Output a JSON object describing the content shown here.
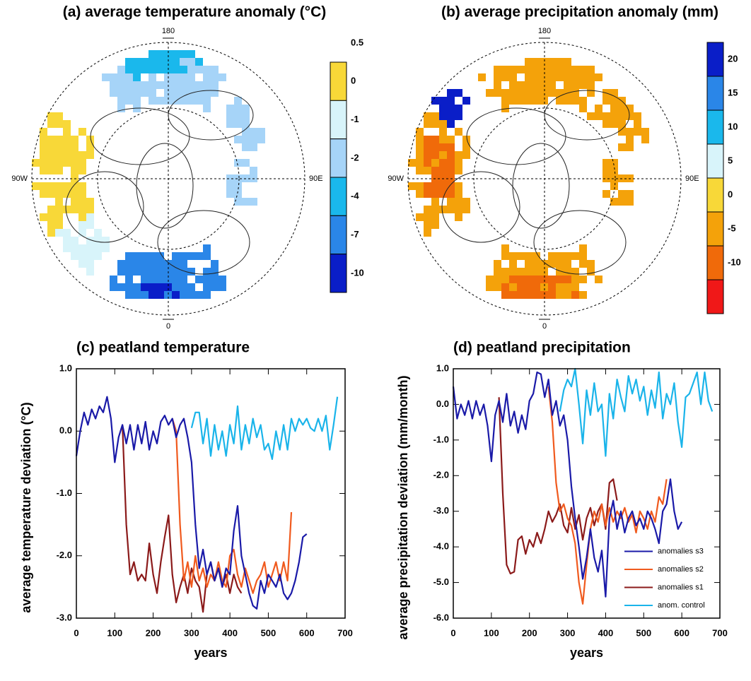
{
  "chart_data": [
    {
      "type": "map",
      "title": "(a) average temperature anomaly (°C)",
      "lon_labels": [
        "180",
        "90W",
        "90E",
        "0"
      ],
      "colorbar": {
        "levels": [
          0.5,
          0,
          -1,
          -2,
          -4,
          -7,
          -10
        ],
        "colors": [
          "#f8d838",
          "#d8f4fa",
          "#a6d4f8",
          "#1ab8ec",
          "#2a86e8",
          "#0a1ec8"
        ]
      }
    },
    {
      "type": "map",
      "title": "(b) average precipitation anomaly (mm)",
      "lon_labels": [
        "180",
        "90W",
        "90E",
        "0"
      ],
      "colorbar": {
        "levels": [
          20,
          15,
          10,
          5,
          0,
          -5,
          -10
        ],
        "colors": [
          "#0a1ec8",
          "#2a86e8",
          "#1ab8ec",
          "#d8f4fa",
          "#f8d838",
          "#f4a20a",
          "#f06a0a",
          "#f01818"
        ]
      }
    },
    {
      "type": "line",
      "title": "(c) peatland temperature",
      "x_label": "years",
      "y_label": "average temperature deviation (°C)",
      "xlim": [
        0,
        700
      ],
      "xticks": [
        0,
        100,
        200,
        300,
        400,
        500,
        600,
        700
      ],
      "ylim": [
        -3,
        1
      ],
      "yticks": [
        {
          "value": -3,
          "label": "-3.0"
        },
        {
          "value": -2,
          "label": "-2.0"
        },
        {
          "value": -1,
          "label": "-1.0"
        },
        {
          "value": 0,
          "label": "0.0"
        },
        {
          "value": 1,
          "label": "1.0"
        }
      ],
      "series": [
        {
          "color": "#1ab4ea",
          "x": [
            300,
            310,
            320,
            330,
            340,
            350,
            360,
            370,
            380,
            390,
            400,
            410,
            420,
            430,
            440,
            450,
            460,
            470,
            480,
            490,
            500,
            510,
            520,
            530,
            540,
            550,
            560,
            570,
            580,
            590,
            600,
            610,
            620,
            630,
            640,
            650,
            660,
            670,
            680
          ],
          "values": [
            0.05,
            0.3,
            0.3,
            -0.2,
            0.2,
            -0.4,
            0.1,
            -0.3,
            0.0,
            -0.4,
            0.1,
            -0.2,
            0.4,
            -0.3,
            0.1,
            -0.2,
            0.2,
            -0.1,
            0.1,
            -0.3,
            -0.2,
            -0.45,
            0.0,
            -0.3,
            0.1,
            -0.3,
            0.2,
            0.0,
            0.2,
            0.1,
            0.2,
            0.05,
            0.0,
            0.2,
            0.0,
            0.25,
            -0.3,
            0.1,
            0.55
          ]
        },
        {
          "color": "#8b1a1a",
          "x": [
            120,
            130,
            140,
            150,
            160,
            170,
            180,
            190,
            200,
            210,
            220,
            230,
            240,
            250,
            260,
            270,
            280,
            290,
            300,
            310,
            320,
            330,
            340,
            350,
            360,
            370,
            380,
            390,
            400,
            410,
            420,
            430
          ],
          "values": [
            0.1,
            -1.5,
            -2.3,
            -2.1,
            -2.4,
            -2.3,
            -2.4,
            -1.8,
            -2.3,
            -2.6,
            -2.1,
            -1.7,
            -1.35,
            -2.3,
            -2.75,
            -2.5,
            -2.3,
            -2.6,
            -2.2,
            -2.4,
            -2.5,
            -2.9,
            -2.3,
            -2.1,
            -2.4,
            -2.2,
            -2.5,
            -2.3,
            -2.6,
            -2.3,
            -2.5,
            -2.6
          ]
        },
        {
          "color": "#f05a1e",
          "x": [
            250,
            260,
            270,
            280,
            290,
            300,
            310,
            320,
            330,
            340,
            350,
            360,
            370,
            380,
            390,
            400,
            410,
            420,
            430,
            440,
            450,
            460,
            470,
            480,
            490,
            500,
            510,
            520,
            530,
            540,
            550,
            560
          ],
          "values": [
            0.2,
            0.0,
            -1.5,
            -2.4,
            -2.1,
            -2.5,
            -2.0,
            -2.4,
            -2.2,
            -2.5,
            -2.3,
            -2.4,
            -2.1,
            -2.4,
            -2.5,
            -2.0,
            -1.9,
            -2.3,
            -2.5,
            -2.2,
            -2.4,
            -2.6,
            -2.4,
            -2.3,
            -2.1,
            -2.5,
            -2.3,
            -2.1,
            -2.4,
            -2.1,
            -2.4,
            -1.3
          ]
        },
        {
          "color": "#1a1aa8",
          "x": [
            0,
            10,
            20,
            30,
            40,
            50,
            60,
            70,
            80,
            90,
            100,
            110,
            120,
            130,
            140,
            150,
            160,
            170,
            180,
            190,
            200,
            210,
            220,
            230,
            240,
            250,
            260,
            270,
            280,
            290,
            300,
            310,
            320,
            330,
            340,
            350,
            360,
            370,
            380,
            390,
            400,
            410,
            420,
            430,
            440,
            450,
            460,
            470,
            480,
            490,
            500,
            510,
            520,
            530,
            540,
            550,
            560,
            570,
            580,
            590,
            600
          ],
          "values": [
            -0.4,
            0.0,
            0.3,
            0.1,
            0.35,
            0.2,
            0.4,
            0.3,
            0.55,
            0.2,
            -0.5,
            -0.1,
            0.1,
            -0.2,
            0.1,
            -0.3,
            0.1,
            -0.2,
            0.15,
            -0.3,
            0.0,
            -0.2,
            0.15,
            0.25,
            0.1,
            0.2,
            -0.1,
            0.1,
            0.2,
            -0.1,
            -0.5,
            -1.5,
            -2.2,
            -1.9,
            -2.3,
            -2.1,
            -2.4,
            -2.2,
            -2.5,
            -2.2,
            -2.3,
            -1.6,
            -1.2,
            -2.0,
            -2.3,
            -2.6,
            -2.8,
            -2.85,
            -2.4,
            -2.6,
            -2.3,
            -2.4,
            -2.5,
            -2.3,
            -2.6,
            -2.7,
            -2.6,
            -2.4,
            -2.1,
            -1.7,
            -1.65
          ]
        }
      ]
    },
    {
      "type": "line",
      "title": "(d) peatland precipitation",
      "x_label": "years",
      "y_label": "average precipitation deviation (mm/month)",
      "xlim": [
        0,
        700
      ],
      "xticks": [
        0,
        100,
        200,
        300,
        400,
        500,
        600,
        700
      ],
      "ylim": [
        -6,
        1
      ],
      "yticks": [
        {
          "value": -6,
          "label": "-6.0"
        },
        {
          "value": -5,
          "label": "-5.0"
        },
        {
          "value": -4,
          "label": "-4.0"
        },
        {
          "value": -3,
          "label": "-3.0"
        },
        {
          "value": -2,
          "label": "-2.0"
        },
        {
          "value": -1,
          "label": "-1.0"
        },
        {
          "value": 0,
          "label": "0.0"
        },
        {
          "value": 1,
          "label": "1.0"
        }
      ],
      "legend": "lower right",
      "series": [
        {
          "name": "anom. control",
          "color": "#1ab4ea",
          "x": [
            280,
            290,
            300,
            310,
            320,
            330,
            340,
            350,
            360,
            370,
            380,
            390,
            400,
            410,
            420,
            430,
            440,
            450,
            460,
            470,
            480,
            490,
            500,
            510,
            520,
            530,
            540,
            550,
            560,
            570,
            580,
            590,
            600,
            610,
            620,
            630,
            640,
            650,
            660,
            670,
            680
          ],
          "values": [
            -0.2,
            0.4,
            0.7,
            0.5,
            1.0,
            0.0,
            -1.1,
            0.4,
            -0.3,
            0.6,
            -0.2,
            0.0,
            -1.45,
            0.3,
            -0.4,
            0.7,
            0.2,
            -0.2,
            0.8,
            0.3,
            0.7,
            0.1,
            0.5,
            -0.3,
            0.4,
            -0.1,
            0.9,
            -0.4,
            0.3,
            0.0,
            0.6,
            -0.5,
            -1.2,
            0.2,
            0.3,
            0.6,
            0.9,
            0.0,
            0.9,
            0.1,
            -0.2
          ]
        },
        {
          "name": "anomalies s1",
          "color": "#8b1a1a",
          "x": [
            120,
            130,
            140,
            150,
            160,
            170,
            180,
            190,
            200,
            210,
            220,
            230,
            240,
            250,
            260,
            270,
            280,
            290,
            300,
            310,
            320,
            330,
            340,
            350,
            360,
            370,
            380,
            390,
            400,
            410,
            420,
            430
          ],
          "values": [
            0.2,
            -2.5,
            -4.5,
            -4.75,
            -4.7,
            -3.8,
            -3.7,
            -4.2,
            -3.8,
            -4.0,
            -3.6,
            -3.9,
            -3.5,
            -3.0,
            -3.3,
            -3.1,
            -2.8,
            -3.4,
            -3.6,
            -2.9,
            -3.5,
            -3.1,
            -3.8,
            -3.2,
            -2.9,
            -3.4,
            -3.0,
            -2.8,
            -3.5,
            -2.2,
            -2.1,
            -2.7
          ]
        },
        {
          "name": "anomalies s2",
          "color": "#f05a1e",
          "x": [
            250,
            260,
            270,
            280,
            290,
            300,
            310,
            320,
            330,
            340,
            350,
            360,
            370,
            380,
            390,
            400,
            410,
            420,
            430,
            440,
            450,
            460,
            470,
            480,
            490,
            500,
            510,
            520,
            530,
            540,
            550,
            560
          ],
          "values": [
            0.5,
            -0.5,
            -2.2,
            -3.0,
            -2.8,
            -3.2,
            -3.4,
            -3.9,
            -5.0,
            -5.6,
            -4.5,
            -3.5,
            -3.0,
            -3.3,
            -2.8,
            -3.4,
            -2.9,
            -3.3,
            -3.0,
            -3.2,
            -2.9,
            -3.3,
            -3.1,
            -3.6,
            -3.0,
            -3.2,
            -3.5,
            -3.0,
            -3.3,
            -2.6,
            -2.8,
            -2.1
          ]
        },
        {
          "name": "anomalies s3",
          "color": "#1a1aa8",
          "x": [
            0,
            10,
            20,
            30,
            40,
            50,
            60,
            70,
            80,
            90,
            100,
            110,
            120,
            130,
            140,
            150,
            160,
            170,
            180,
            190,
            200,
            210,
            220,
            230,
            240,
            250,
            260,
            270,
            280,
            290,
            300,
            310,
            320,
            330,
            340,
            350,
            360,
            370,
            380,
            390,
            400,
            410,
            420,
            430,
            440,
            450,
            460,
            470,
            480,
            490,
            500,
            510,
            520,
            530,
            540,
            550,
            560,
            570,
            580,
            590,
            600
          ],
          "values": [
            0.5,
            -0.4,
            0.0,
            -0.3,
            0.1,
            -0.4,
            0.1,
            -0.3,
            0.0,
            -0.6,
            -1.6,
            -0.3,
            0.1,
            -0.5,
            0.3,
            -0.6,
            -0.2,
            -0.8,
            -0.3,
            -0.7,
            0.1,
            0.3,
            0.9,
            0.85,
            0.2,
            0.7,
            -0.3,
            0.1,
            -0.6,
            -0.3,
            -1.0,
            -2.3,
            -3.2,
            -4.0,
            -4.9,
            -4.3,
            -3.5,
            -4.3,
            -4.7,
            -4.1,
            -5.4,
            -3.2,
            -2.7,
            -3.5,
            -3.0,
            -3.6,
            -3.2,
            -3.0,
            -3.4,
            -3.2,
            -3.5,
            -3.0,
            -3.2,
            -3.5,
            -3.9,
            -3.0,
            -2.8,
            -2.1,
            -3.0,
            -3.5,
            -3.3
          ]
        }
      ]
    }
  ]
}
